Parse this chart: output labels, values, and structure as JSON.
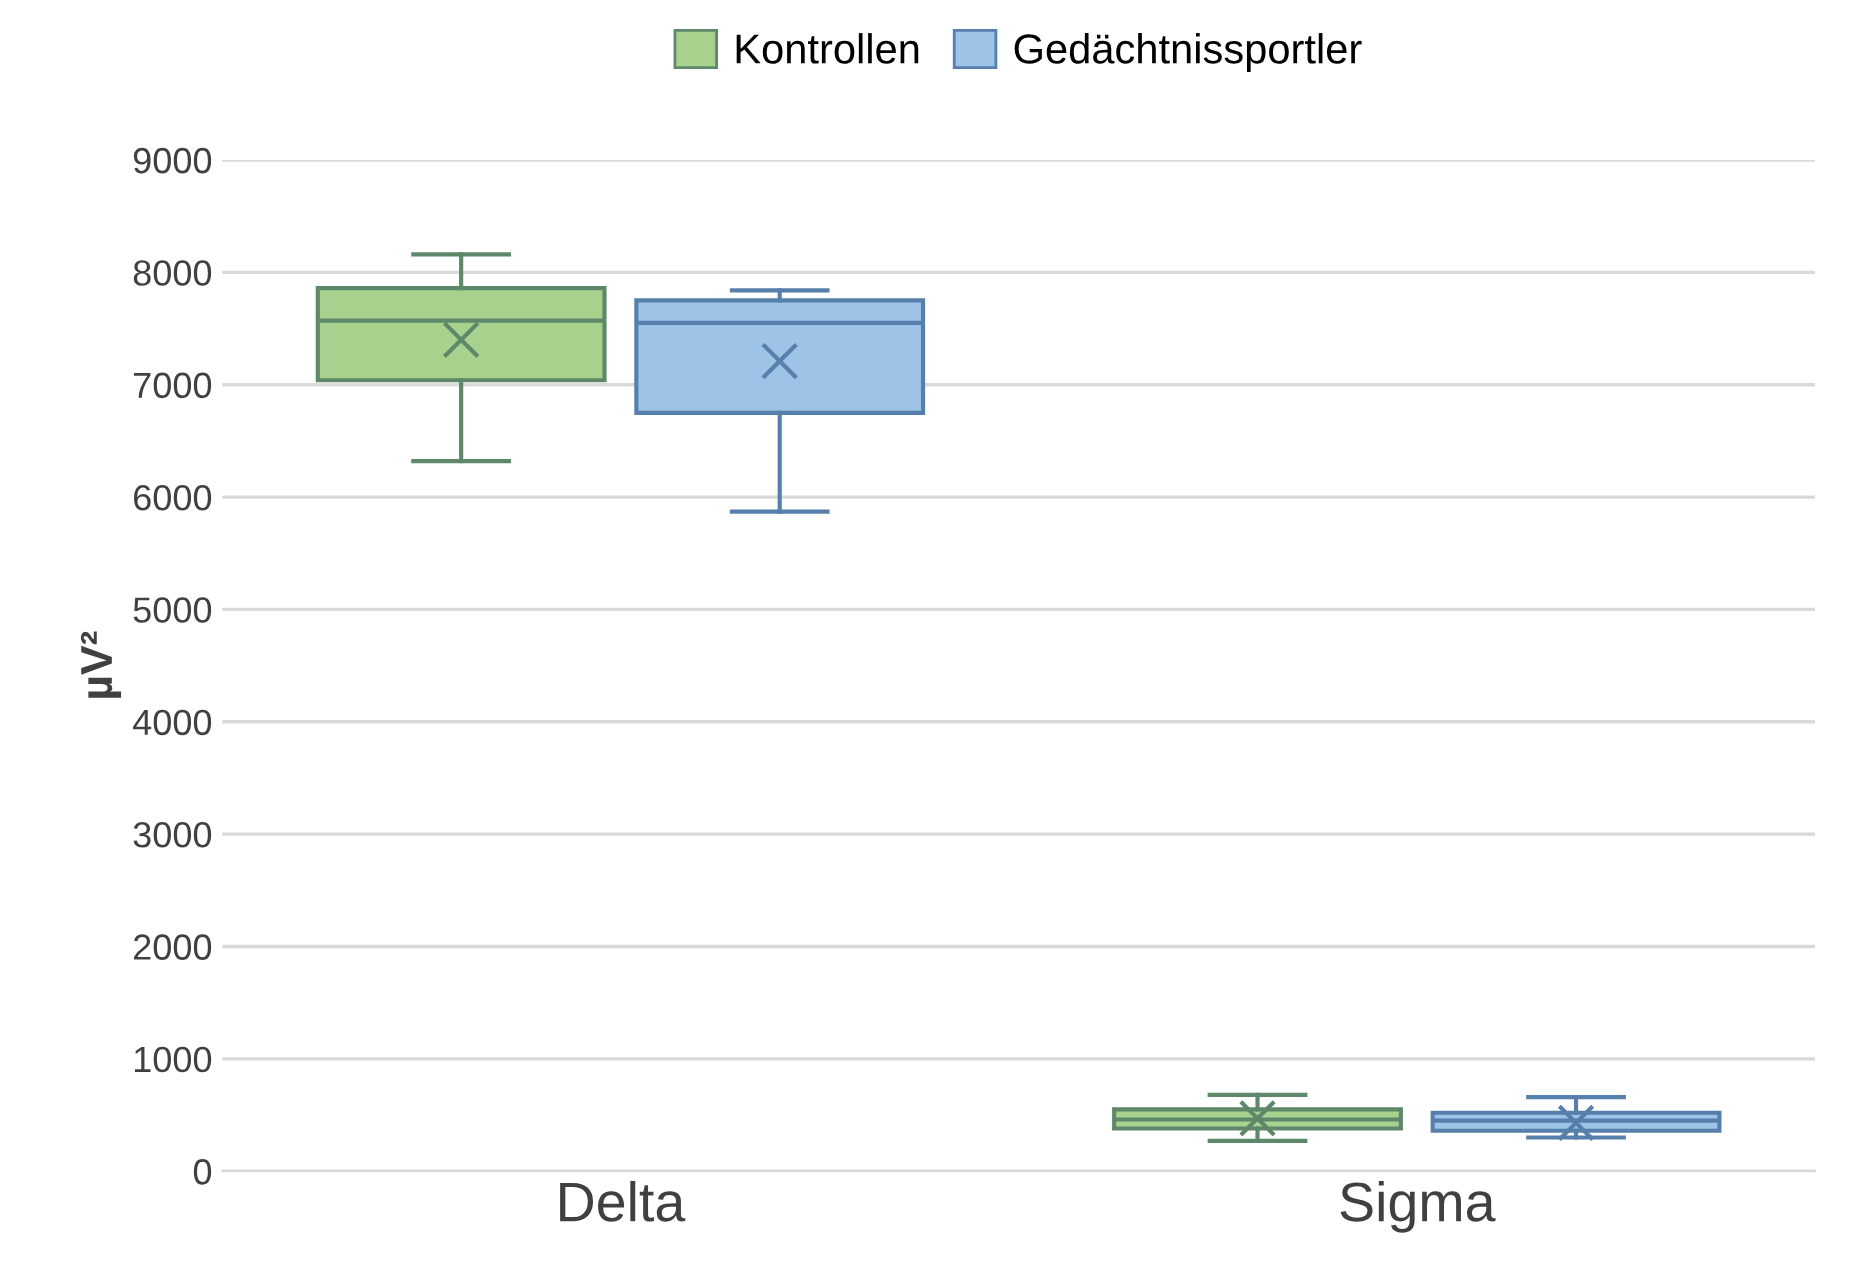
{
  "chart_data": {
    "type": "box",
    "ylabel": "µV²",
    "categories": [
      "Delta",
      "Sigma"
    ],
    "series": [
      {
        "name": "Kontrollen",
        "color": "#a9d18e",
        "boxes": [
          {
            "low": 6320,
            "q1": 7040,
            "median": 7570,
            "q3": 7860,
            "high": 8160,
            "mean": 7400
          },
          {
            "low": 270,
            "q1": 380,
            "median": 460,
            "q3": 550,
            "high": 680,
            "mean": 470
          }
        ]
      },
      {
        "name": "Gedächtnissportler",
        "color": "#9dc3e6",
        "boxes": [
          {
            "low": 5870,
            "q1": 6750,
            "median": 7550,
            "q3": 7750,
            "high": 7840,
            "mean": 7210
          },
          {
            "low": 300,
            "q1": 360,
            "median": 450,
            "q3": 520,
            "high": 660,
            "mean": 430
          }
        ]
      }
    ],
    "ylim": [
      0,
      9000
    ],
    "yticks": [
      0,
      1000,
      2000,
      3000,
      4000,
      5000,
      6000,
      7000,
      8000,
      9000
    ],
    "grid": "y",
    "legend": "top"
  }
}
